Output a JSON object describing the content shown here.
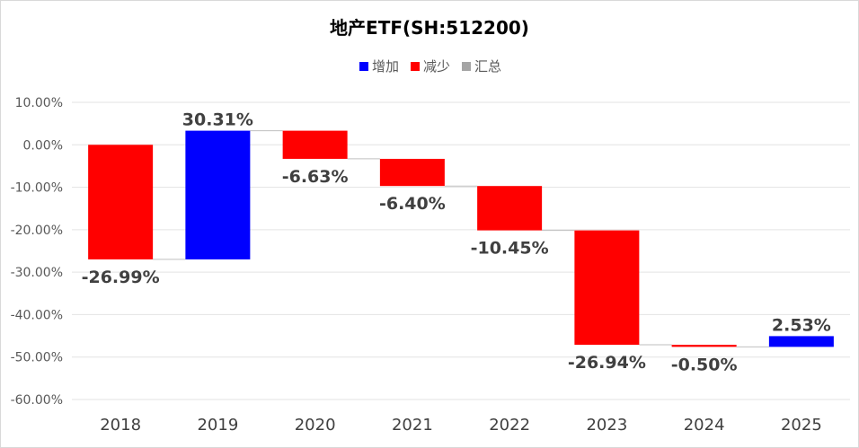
{
  "chart_data": {
    "type": "waterfall",
    "title": "地产ETF(SH:512200)",
    "legend": [
      {
        "label": "增加",
        "color": "#0000ff"
      },
      {
        "label": "减少",
        "color": "#ff0000"
      },
      {
        "label": "汇总",
        "color": "#a5a5a5"
      }
    ],
    "categories": [
      "2018",
      "2019",
      "2020",
      "2021",
      "2022",
      "2023",
      "2024",
      "2025"
    ],
    "values": [
      -26.99,
      30.31,
      -6.63,
      -6.4,
      -10.45,
      -26.94,
      -0.5,
      2.53
    ],
    "value_labels": [
      "-26.99%",
      "30.31%",
      "-6.63%",
      "-6.40%",
      "-10.45%",
      "-26.94%",
      "-0.50%",
      "2.53%"
    ],
    "ylim": [
      -60,
      10
    ],
    "yticks": [
      10,
      0,
      -10,
      -20,
      -30,
      -40,
      -50,
      -60
    ],
    "ytick_labels": [
      "10.00%",
      "0.00%",
      "-10.00%",
      "-20.00%",
      "-30.00%",
      "-40.00%",
      "-50.00%",
      "-60.00%"
    ],
    "colors": {
      "increase": "#0000ff",
      "decrease": "#ff0000",
      "total": "#a5a5a5"
    },
    "grid": true,
    "legend_position": "top"
  }
}
